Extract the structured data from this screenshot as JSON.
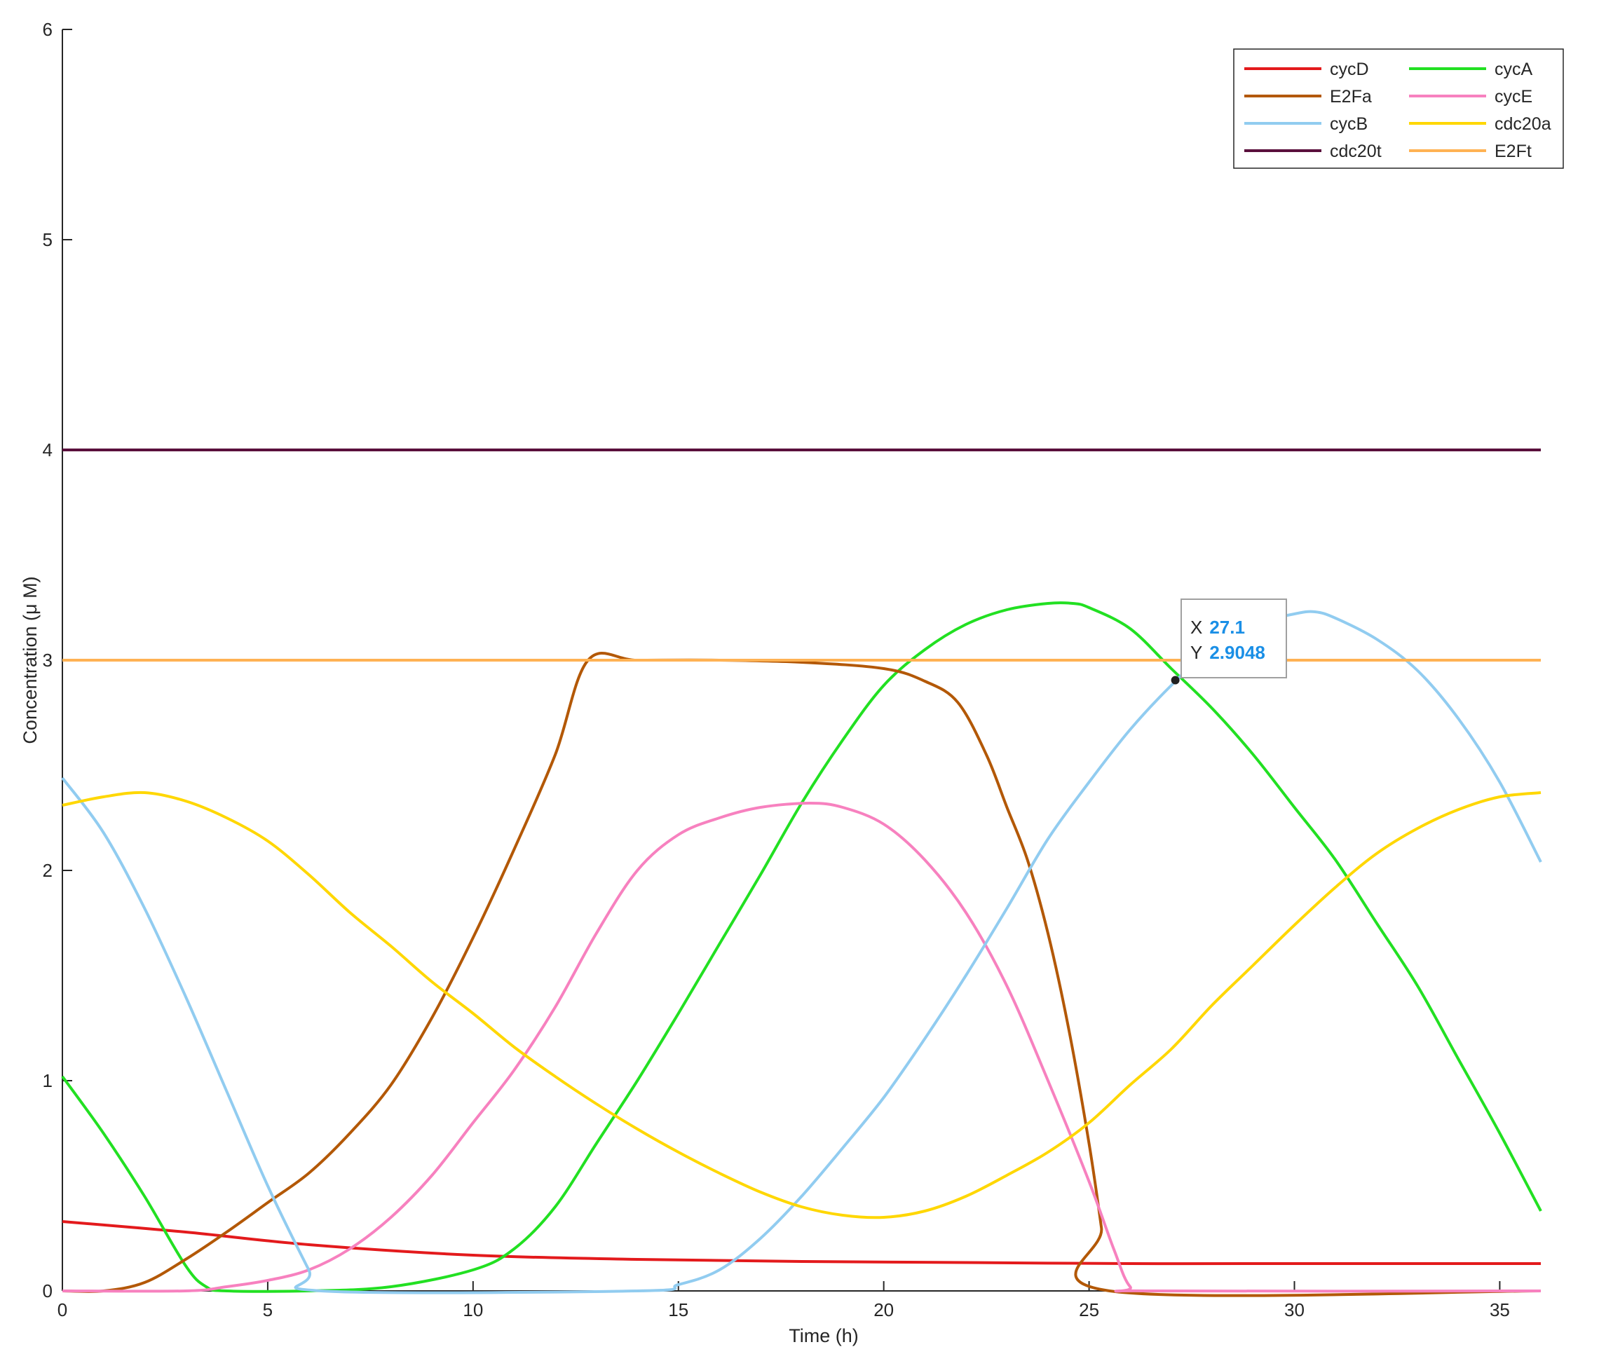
{
  "chart_data": {
    "type": "line",
    "title": "",
    "xlabel": "Time (h)",
    "ylabel": "Concentration (μ M)",
    "xlim": [
      0,
      36
    ],
    "ylim": [
      0,
      6
    ],
    "xticks": [
      "0",
      "5",
      "10",
      "15",
      "20",
      "25",
      "30",
      "35"
    ],
    "yticks": [
      "0",
      "1",
      "2",
      "3",
      "4",
      "5",
      "6"
    ],
    "grid": false,
    "legend_position": "top-right",
    "series": [
      {
        "name": "cycD",
        "color": "#e31a1c",
        "points": [
          [
            0,
            0.33
          ],
          [
            3,
            0.28
          ],
          [
            6,
            0.22
          ],
          [
            10,
            0.17
          ],
          [
            14,
            0.15
          ],
          [
            18,
            0.14
          ],
          [
            22,
            0.135
          ],
          [
            26,
            0.13
          ],
          [
            30,
            0.13
          ],
          [
            36,
            0.13
          ]
        ]
      },
      {
        "name": "cycA",
        "color": "#22e022",
        "points": [
          [
            0,
            1.02
          ],
          [
            1,
            0.75
          ],
          [
            2,
            0.45
          ],
          [
            3,
            0.12
          ],
          [
            3.5,
            0.02
          ],
          [
            4,
            0.0
          ],
          [
            6,
            0.0
          ],
          [
            8,
            0.02
          ],
          [
            10,
            0.1
          ],
          [
            11,
            0.2
          ],
          [
            12,
            0.4
          ],
          [
            13,
            0.7
          ],
          [
            14,
            1.0
          ],
          [
            15,
            1.32
          ],
          [
            16,
            1.65
          ],
          [
            17,
            1.98
          ],
          [
            18,
            2.32
          ],
          [
            19,
            2.62
          ],
          [
            20,
            2.88
          ],
          [
            21,
            3.05
          ],
          [
            22,
            3.17
          ],
          [
            23,
            3.24
          ],
          [
            24,
            3.27
          ],
          [
            24.6,
            3.27
          ],
          [
            25,
            3.25
          ],
          [
            26,
            3.15
          ],
          [
            27,
            2.96
          ],
          [
            28,
            2.77
          ],
          [
            29,
            2.55
          ],
          [
            30,
            2.3
          ],
          [
            31,
            2.05
          ],
          [
            32,
            1.75
          ],
          [
            33,
            1.45
          ],
          [
            34,
            1.1
          ],
          [
            35,
            0.75
          ],
          [
            36,
            0.38
          ]
        ]
      },
      {
        "name": "E2Fa",
        "color": "#b35806",
        "points": [
          [
            0,
            0
          ],
          [
            1,
            0.0
          ],
          [
            2,
            0.04
          ],
          [
            3,
            0.15
          ],
          [
            4,
            0.28
          ],
          [
            5,
            0.42
          ],
          [
            6,
            0.56
          ],
          [
            7,
            0.75
          ],
          [
            8,
            0.98
          ],
          [
            9,
            1.3
          ],
          [
            10,
            1.68
          ],
          [
            11,
            2.1
          ],
          [
            12,
            2.55
          ],
          [
            12.8,
            3.0
          ],
          [
            14,
            3.0
          ],
          [
            16,
            3.0
          ],
          [
            18,
            2.99
          ],
          [
            20,
            2.96
          ],
          [
            21,
            2.9
          ],
          [
            21.8,
            2.8
          ],
          [
            22.5,
            2.55
          ],
          [
            23,
            2.3
          ],
          [
            23.5,
            2.05
          ],
          [
            24,
            1.7
          ],
          [
            24.5,
            1.25
          ],
          [
            25,
            0.7
          ],
          [
            25.3,
            0.3
          ],
          [
            25.5,
            0.0
          ],
          [
            36,
            0
          ]
        ]
      },
      {
        "name": "cycE",
        "color": "#f781bf",
        "points": [
          [
            0,
            0
          ],
          [
            3,
            0.0
          ],
          [
            4,
            0.02
          ],
          [
            5,
            0.05
          ],
          [
            6,
            0.1
          ],
          [
            7,
            0.2
          ],
          [
            8,
            0.35
          ],
          [
            9,
            0.55
          ],
          [
            10,
            0.8
          ],
          [
            11,
            1.05
          ],
          [
            12,
            1.35
          ],
          [
            13,
            1.7
          ],
          [
            14,
            2.0
          ],
          [
            15,
            2.17
          ],
          [
            16,
            2.25
          ],
          [
            17,
            2.3
          ],
          [
            18.2,
            2.32
          ],
          [
            19,
            2.3
          ],
          [
            20,
            2.22
          ],
          [
            21,
            2.05
          ],
          [
            22,
            1.8
          ],
          [
            23,
            1.45
          ],
          [
            24,
            1.0
          ],
          [
            25,
            0.52
          ],
          [
            25.6,
            0.2
          ],
          [
            26,
            0.02
          ],
          [
            26.5,
            0
          ],
          [
            36,
            0
          ]
        ]
      },
      {
        "name": "cycB",
        "color": "#91ccf0",
        "points": [
          [
            0,
            2.44
          ],
          [
            1,
            2.18
          ],
          [
            2,
            1.82
          ],
          [
            3,
            1.4
          ],
          [
            4,
            0.95
          ],
          [
            5,
            0.5
          ],
          [
            6,
            0.1
          ],
          [
            6.3,
            0.0
          ],
          [
            14,
            0.0
          ],
          [
            15,
            0.03
          ],
          [
            16,
            0.1
          ],
          [
            17,
            0.25
          ],
          [
            18,
            0.45
          ],
          [
            19,
            0.68
          ],
          [
            20,
            0.92
          ],
          [
            21,
            1.2
          ],
          [
            22,
            1.5
          ],
          [
            23,
            1.82
          ],
          [
            24,
            2.15
          ],
          [
            25,
            2.42
          ],
          [
            26,
            2.67
          ],
          [
            27,
            2.88
          ],
          [
            28,
            3.06
          ],
          [
            29,
            3.17
          ],
          [
            30,
            3.22
          ],
          [
            30.5,
            3.23
          ],
          [
            31,
            3.2
          ],
          [
            32,
            3.1
          ],
          [
            33,
            2.95
          ],
          [
            34,
            2.72
          ],
          [
            35,
            2.42
          ],
          [
            36,
            2.04
          ]
        ]
      },
      {
        "name": "cdc20a",
        "color": "#ffd700",
        "points": [
          [
            0,
            2.31
          ],
          [
            1,
            2.35
          ],
          [
            2,
            2.37
          ],
          [
            3,
            2.33
          ],
          [
            4,
            2.25
          ],
          [
            5,
            2.14
          ],
          [
            6,
            1.98
          ],
          [
            7,
            1.8
          ],
          [
            8,
            1.64
          ],
          [
            9,
            1.47
          ],
          [
            10,
            1.32
          ],
          [
            11,
            1.16
          ],
          [
            12,
            1.02
          ],
          [
            13,
            0.89
          ],
          [
            14,
            0.77
          ],
          [
            15,
            0.66
          ],
          [
            16,
            0.56
          ],
          [
            17,
            0.47
          ],
          [
            18,
            0.4
          ],
          [
            19,
            0.36
          ],
          [
            20,
            0.35
          ],
          [
            21,
            0.38
          ],
          [
            22,
            0.45
          ],
          [
            23,
            0.55
          ],
          [
            24,
            0.66
          ],
          [
            25,
            0.8
          ],
          [
            26,
            0.98
          ],
          [
            27,
            1.15
          ],
          [
            28,
            1.36
          ],
          [
            29,
            1.55
          ],
          [
            30,
            1.74
          ],
          [
            31,
            1.92
          ],
          [
            32,
            2.08
          ],
          [
            33,
            2.2
          ],
          [
            34,
            2.29
          ],
          [
            35,
            2.35
          ],
          [
            36,
            2.37
          ]
        ]
      },
      {
        "name": "cdc20t",
        "color": "#5a0f3c",
        "points": [
          [
            0,
            4
          ],
          [
            36,
            4
          ]
        ]
      },
      {
        "name": "E2Ft",
        "color": "#ffb253",
        "points": [
          [
            0,
            3
          ],
          [
            36,
            3
          ]
        ]
      }
    ],
    "datatip": {
      "x_label": "X",
      "x_value": "27.1",
      "y_label": "Y",
      "y_value": "2.9048",
      "x": 27.1,
      "y": 2.9048
    }
  }
}
